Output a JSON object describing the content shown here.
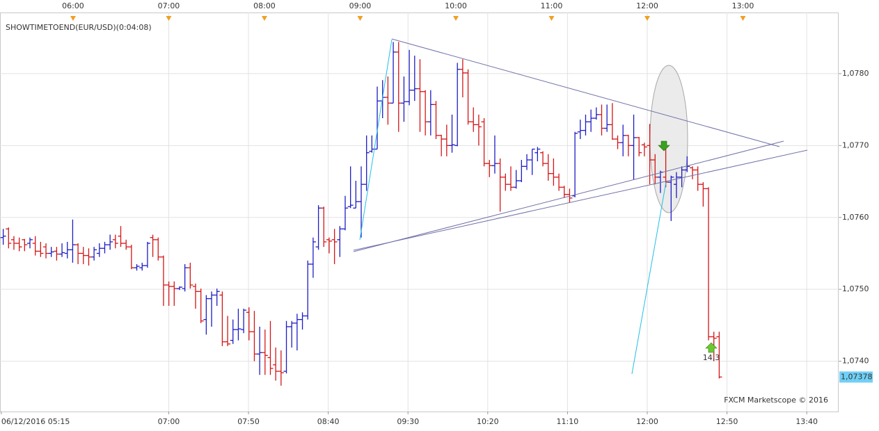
{
  "chart_data": {
    "type": "ohlc",
    "title": "SHOWTIMETOEND(EUR/USD)(0:04:08)",
    "credit": "FXCM Marketscope © 2016",
    "annotation": "14,3",
    "up_color": "#1c1cc4",
    "down_color": "#d41414",
    "xlim": [
      314.2,
      840
    ],
    "ylim": [
      1.0733,
      1.07885
    ],
    "grid": true,
    "xticks_top": [
      {
        "value": 360,
        "label": "06:00"
      },
      {
        "value": 420,
        "label": "07:00"
      },
      {
        "value": 480,
        "label": "08:00"
      },
      {
        "value": 540,
        "label": "09:00"
      },
      {
        "value": 600,
        "label": "10:00"
      },
      {
        "value": 660,
        "label": "11:00"
      },
      {
        "value": 720,
        "label": "12:00"
      },
      {
        "value": 780,
        "label": "13:00"
      }
    ],
    "xticks": [
      {
        "value": 315,
        "label": "06/12/2016 05:15"
      },
      {
        "value": 420,
        "label": "07:00"
      },
      {
        "value": 470,
        "label": "07:50"
      },
      {
        "value": 520,
        "label": "08:40"
      },
      {
        "value": 570,
        "label": "09:30"
      },
      {
        "value": 620,
        "label": "10:20"
      },
      {
        "value": 670,
        "label": "11:10"
      },
      {
        "value": 720,
        "label": "12:00"
      },
      {
        "value": 770,
        "label": "12:50"
      },
      {
        "value": 820,
        "label": "13:40"
      }
    ],
    "yticks": [
      {
        "value": 1.074,
        "label": "1,0740"
      },
      {
        "value": 1.075,
        "label": "1,0750"
      },
      {
        "value": 1.076,
        "label": "1,0760"
      },
      {
        "value": 1.077,
        "label": "1,0770"
      },
      {
        "value": 1.078,
        "label": "1,0780"
      }
    ],
    "last_price": {
      "value": 1.07378,
      "label": "1,07378"
    },
    "x": [
      316,
      319.35,
      322.7,
      326.05,
      329.4,
      332.75,
      336.1,
      339.45,
      342.8,
      346.15,
      349.5,
      352.85,
      356.2,
      359.55,
      362.9,
      366.25,
      369.6,
      372.95,
      376.3,
      379.65,
      383,
      386.35,
      389.7,
      393.05,
      396.4,
      399.75,
      403.1,
      406.45,
      409.8,
      413.15,
      416.5,
      419.85,
      423.2,
      426.55,
      429.9,
      433.25,
      436.6,
      439.95,
      443.3,
      446.65,
      450,
      453.35,
      456.7,
      460.05,
      463.4,
      466.75,
      470.1,
      473.45,
      476.8,
      480.15,
      483.5,
      486.85,
      490.2,
      493.55,
      496.9,
      500.25,
      503.6,
      506.95,
      510.3,
      513.65,
      517,
      520.35,
      523.7,
      527.05,
      530.4,
      533.75,
      537.1,
      540.45,
      543.8,
      547.15,
      550.5,
      553.85,
      557.2,
      560.55,
      563.9,
      567.25,
      570.6,
      573.95,
      577.3,
      580.65,
      584,
      587.35,
      590.7,
      594.05,
      597.4,
      600.75,
      604.1,
      607.45,
      610.8,
      614.15,
      617.5,
      620.85,
      624.2,
      627.55,
      630.9,
      634.25,
      637.6,
      640.95,
      644.3,
      647.65,
      651,
      654.35,
      657.7,
      661.05,
      664.4,
      667.75,
      671.1,
      674.45,
      677.8,
      681.15,
      684.5,
      687.85,
      691.2,
      694.55,
      697.9,
      701.25,
      704.6,
      707.95,
      711.3,
      714.65,
      718,
      721.35,
      724.7,
      728.05,
      731.4,
      734.75,
      738.1,
      741.45,
      744.8,
      748.15,
      751.5,
      754.85,
      758.2,
      761.55,
      764.9
    ],
    "ohlc": [
      [
        1.07572,
        1.07584,
        1.07562,
        1.07574
      ],
      [
        1.07584,
        1.07586,
        1.07557,
        1.07564
      ],
      [
        1.07569,
        1.07574,
        1.07555,
        1.07564
      ],
      [
        1.07564,
        1.07572,
        1.07553,
        1.07559
      ],
      [
        1.07569,
        1.0757,
        1.07553,
        1.07562
      ],
      [
        1.07564,
        1.07572,
        1.07557,
        1.07569
      ],
      [
        1.07564,
        1.07574,
        1.07547,
        1.07553
      ],
      [
        1.07553,
        1.07566,
        1.07545,
        1.0755
      ],
      [
        1.07559,
        1.07564,
        1.07543,
        1.0755
      ],
      [
        1.0755,
        1.07559,
        1.07545,
        1.07552
      ],
      [
        1.07553,
        1.07559,
        1.0754,
        1.07549
      ],
      [
        1.07549,
        1.07564,
        1.07545,
        1.07551
      ],
      [
        1.0755,
        1.07566,
        1.07543,
        1.07555
      ],
      [
        1.07555,
        1.07597,
        1.07537,
        1.07562
      ],
      [
        1.07562,
        1.07564,
        1.07535,
        1.0755
      ],
      [
        1.0755,
        1.07559,
        1.07535,
        1.07547
      ],
      [
        1.07547,
        1.07557,
        1.07533,
        1.07545
      ],
      [
        1.07545,
        1.07559,
        1.0754,
        1.07555
      ],
      [
        1.0755,
        1.07564,
        1.07545,
        1.07557
      ],
      [
        1.07557,
        1.07566,
        1.0755,
        1.07562
      ],
      [
        1.07562,
        1.07576,
        1.07555,
        1.07566
      ],
      [
        1.07569,
        1.07576,
        1.07557,
        1.07564
      ],
      [
        1.07574,
        1.07588,
        1.07559,
        1.07564
      ],
      [
        1.07564,
        1.07569,
        1.07555,
        1.07559
      ],
      [
        1.07559,
        1.07562,
        1.07528,
        1.0753
      ],
      [
        1.0753,
        1.07535,
        1.07526,
        1.07532
      ],
      [
        1.0753,
        1.07537,
        1.07526,
        1.07533
      ],
      [
        1.07533,
        1.07566,
        1.0753,
        1.07564
      ],
      [
        1.07572,
        1.07576,
        1.07545,
        1.07569
      ],
      [
        1.07569,
        1.07572,
        1.0754,
        1.07545
      ],
      [
        1.07545,
        1.07547,
        1.07477,
        1.07506
      ],
      [
        1.07506,
        1.07511,
        1.07477,
        1.07504
      ],
      [
        1.07504,
        1.07511,
        1.07477,
        1.07501
      ],
      [
        1.07501,
        1.07504,
        1.07499,
        1.07503
      ],
      [
        1.07501,
        1.07535,
        1.07497,
        1.0753
      ],
      [
        1.0753,
        1.07537,
        1.07501,
        1.07506
      ],
      [
        1.07504,
        1.07508,
        1.07473,
        1.07497
      ],
      [
        1.07497,
        1.07501,
        1.07453,
        1.07456
      ],
      [
        1.07458,
        1.07492,
        1.07437,
        1.07487
      ],
      [
        1.07487,
        1.07497,
        1.07448,
        1.07492
      ],
      [
        1.07492,
        1.07501,
        1.07477,
        1.07497
      ],
      [
        1.07492,
        1.07497,
        1.07421,
        1.07427
      ],
      [
        1.07427,
        1.07463,
        1.07421,
        1.07424
      ],
      [
        1.07429,
        1.07458,
        1.07424,
        1.07444
      ],
      [
        1.07444,
        1.07473,
        1.07429,
        1.07445
      ],
      [
        1.07444,
        1.07473,
        1.07439,
        1.07471
      ],
      [
        1.07468,
        1.07475,
        1.07429,
        1.07441
      ],
      [
        1.07441,
        1.0747,
        1.074,
        1.0741
      ],
      [
        1.0741,
        1.07448,
        1.07381,
        1.07412
      ],
      [
        1.07412,
        1.07444,
        1.07381,
        1.07408
      ],
      [
        1.07405,
        1.07456,
        1.07381,
        1.0739
      ],
      [
        1.07395,
        1.07419,
        1.07373,
        1.07386
      ],
      [
        1.07386,
        1.07415,
        1.07366,
        1.07384
      ],
      [
        1.07386,
        1.07456,
        1.07383,
        1.07448
      ],
      [
        1.07448,
        1.07456,
        1.07419,
        1.07453
      ],
      [
        1.07453,
        1.07466,
        1.07415,
        1.07458
      ],
      [
        1.07458,
        1.07468,
        1.07444,
        1.07463
      ],
      [
        1.07463,
        1.0754,
        1.07458,
        1.07535
      ],
      [
        1.07535,
        1.07572,
        1.07516,
        1.07566
      ],
      [
        1.07559,
        1.07617,
        1.07555,
        1.07613
      ],
      [
        1.07613,
        1.07615,
        1.07559,
        1.07566
      ],
      [
        1.07569,
        1.07572,
        1.0755,
        1.07567
      ],
      [
        1.07569,
        1.07584,
        1.07535,
        1.07566
      ],
      [
        1.07569,
        1.07588,
        1.07545,
        1.07584
      ],
      [
        1.07584,
        1.0763,
        1.07582,
        1.07613
      ],
      [
        1.07615,
        1.07671,
        1.07613,
        1.07617
      ],
      [
        1.07613,
        1.07651,
        1.07613,
        1.07622
      ],
      [
        1.07622,
        1.07671,
        1.07572,
        1.07646
      ],
      [
        1.07646,
        1.07714,
        1.07637,
        1.0769
      ],
      [
        1.07692,
        1.07714,
        1.0769,
        1.07695
      ],
      [
        1.07695,
        1.07782,
        1.07695,
        1.07762
      ],
      [
        1.07762,
        1.07791,
        1.07738,
        1.07767
      ],
      [
        1.07767,
        1.07796,
        1.07729,
        1.07759
      ],
      [
        1.07759,
        1.07844,
        1.07759,
        1.0783
      ],
      [
        1.0783,
        1.07844,
        1.07719,
        1.07759
      ],
      [
        1.07759,
        1.07796,
        1.07733,
        1.07761
      ],
      [
        1.07761,
        1.07833,
        1.07756,
        1.07777
      ],
      [
        1.07777,
        1.07825,
        1.07762,
        1.07779
      ],
      [
        1.07779,
        1.0782,
        1.07719,
        1.07775
      ],
      [
        1.07775,
        1.07777,
        1.07714,
        1.07733
      ],
      [
        1.07733,
        1.07777,
        1.07714,
        1.07757
      ],
      [
        1.07757,
        1.07762,
        1.07709,
        1.07714
      ],
      [
        1.07714,
        1.07715,
        1.07685,
        1.07709
      ],
      [
        1.07709,
        1.07729,
        1.07685,
        1.077
      ],
      [
        1.077,
        1.07743,
        1.0769,
        1.07701
      ],
      [
        1.077,
        1.07815,
        1.07699,
        1.07806
      ],
      [
        1.07806,
        1.0782,
        1.07767,
        1.07801
      ],
      [
        1.07801,
        1.07806,
        1.07729,
        1.07733
      ],
      [
        1.07733,
        1.07753,
        1.07719,
        1.07729
      ],
      [
        1.07729,
        1.07743,
        1.077,
        1.07726
      ],
      [
        1.07733,
        1.07738,
        1.07671,
        1.07675
      ],
      [
        1.07675,
        1.0768,
        1.07656,
        1.07672
      ],
      [
        1.07672,
        1.07714,
        1.07661,
        1.07675
      ],
      [
        1.07675,
        1.07682,
        1.07608,
        1.07656
      ],
      [
        1.07656,
        1.07661,
        1.07637,
        1.07646
      ],
      [
        1.07646,
        1.07671,
        1.07637,
        1.07642
      ],
      [
        1.07642,
        1.07666,
        1.0764,
        1.07651
      ],
      [
        1.07651,
        1.0768,
        1.07649,
        1.07671
      ],
      [
        1.07671,
        1.07688,
        1.07666,
        1.0768
      ],
      [
        1.0768,
        1.07695,
        1.07659,
        1.07695
      ],
      [
        1.0769,
        1.07698,
        1.07678,
        1.07695
      ],
      [
        1.0769,
        1.07692,
        1.07671,
        1.07675
      ],
      [
        1.07675,
        1.07688,
        1.07651,
        1.07661
      ],
      [
        1.07661,
        1.07682,
        1.07644,
        1.07656
      ],
      [
        1.07656,
        1.07661,
        1.07637,
        1.07642
      ],
      [
        1.07642,
        1.07644,
        1.07627,
        1.07632
      ],
      [
        1.07632,
        1.0764,
        1.0762,
        1.07627
      ],
      [
        1.0763,
        1.07719,
        1.07628,
        1.07717
      ],
      [
        1.07719,
        1.07736,
        1.07709,
        1.07721
      ],
      [
        1.07721,
        1.07743,
        1.07714,
        1.07733
      ],
      [
        1.07733,
        1.0775,
        1.07719,
        1.07738
      ],
      [
        1.07738,
        1.07753,
        1.07736,
        1.07743
      ],
      [
        1.07743,
        1.07757,
        1.07714,
        1.07724
      ],
      [
        1.07724,
        1.07757,
        1.07719,
        1.07729
      ],
      [
        1.07729,
        1.07759,
        1.07708,
        1.07709
      ],
      [
        1.07709,
        1.07714,
        1.07695,
        1.07704
      ],
      [
        1.07704,
        1.07729,
        1.07685,
        1.07714
      ],
      [
        1.07714,
        1.07715,
        1.07685,
        1.077
      ],
      [
        1.077,
        1.07743,
        1.07653,
        1.07711
      ],
      [
        1.07711,
        1.07712,
        1.07685,
        1.0769
      ],
      [
        1.07701,
        1.07704,
        1.07685,
        1.07698
      ],
      [
        1.077,
        1.0773,
        1.07646,
        1.0768
      ],
      [
        1.0768,
        1.07688,
        1.07646,
        1.07656
      ],
      [
        1.07656,
        1.07665,
        1.07634,
        1.07663
      ],
      [
        1.07656,
        1.07698,
        1.07642,
        1.07649
      ],
      [
        1.07649,
        1.07658,
        1.07595,
        1.07656
      ],
      [
        1.07646,
        1.07663,
        1.07627,
        1.07656
      ],
      [
        1.07656,
        1.07671,
        1.07642,
        1.07666
      ],
      [
        1.07666,
        1.07685,
        1.07663,
        1.07671
      ],
      [
        1.07669,
        1.07671,
        1.07653,
        1.07666
      ],
      [
        1.07666,
        1.07671,
        1.07637,
        1.07646
      ],
      [
        1.07646,
        1.07649,
        1.07615,
        1.0764
      ],
      [
        1.0764,
        1.07642,
        1.07429,
        1.07434
      ],
      [
        1.07434,
        1.07441,
        1.074,
        1.07432
      ],
      [
        1.07434,
        1.07441,
        1.07376,
        1.07378
      ]
    ]
  }
}
